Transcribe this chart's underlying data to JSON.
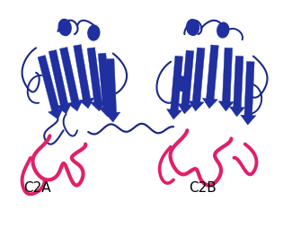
{
  "background_color": "#ffffff",
  "blue_dark": "#2030a0",
  "blue_mid": "#3545b8",
  "blue_light": "#4a60d0",
  "pink": "#e0206a",
  "loop_color": "#1a2888",
  "label_C2A": "C2A",
  "label_C2B": "C2B",
  "label_fontsize": 11,
  "figsize": [
    3.25,
    2.63
  ],
  "dpi": 100
}
